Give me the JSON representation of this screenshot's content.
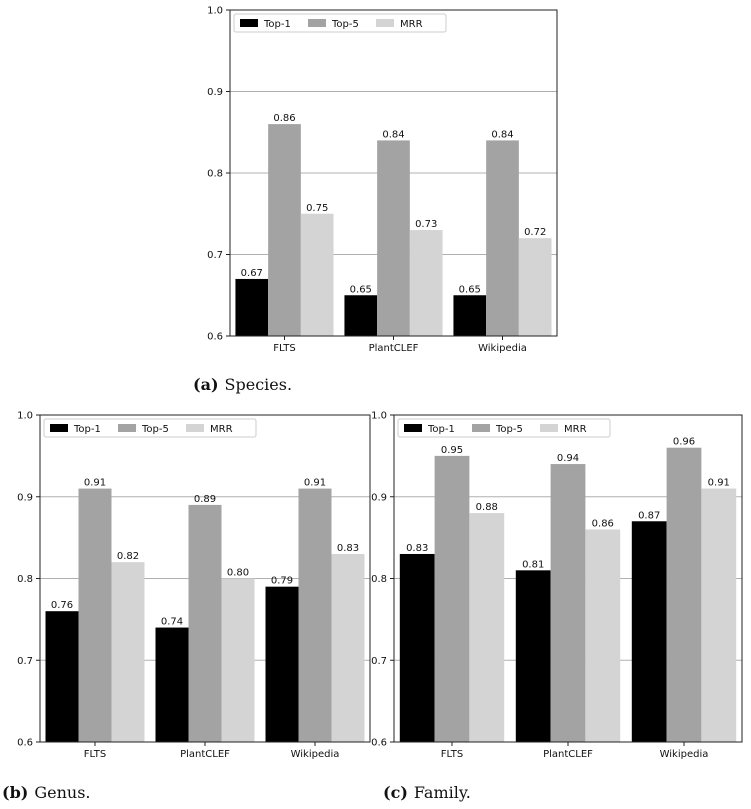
{
  "legend_labels": [
    "Top-1",
    "Top-5",
    "MRR"
  ],
  "series_colors": [
    "#000000",
    "#a3a3a3",
    "#d4d4d4"
  ],
  "captions": [
    {
      "tag": "(a)",
      "text": "Species."
    },
    {
      "tag": "(b)",
      "text": "Genus."
    },
    {
      "tag": "(c)",
      "text": "Family."
    }
  ],
  "chart_data": [
    {
      "type": "bar",
      "categories": [
        "FLTS",
        "PlantCLEF",
        "Wikipedia"
      ],
      "series": [
        {
          "name": "Top-1",
          "values": [
            0.67,
            0.65,
            0.65
          ],
          "labels": [
            "0.67",
            "0.65",
            "0.65"
          ]
        },
        {
          "name": "Top-5",
          "values": [
            0.86,
            0.84,
            0.84
          ],
          "labels": [
            "0.86",
            "0.84",
            "0.84"
          ]
        },
        {
          "name": "MRR",
          "values": [
            0.75,
            0.73,
            0.72
          ],
          "labels": [
            "0.75",
            "0.73",
            "0.72"
          ]
        }
      ],
      "ylim": [
        0.6,
        1.0
      ],
      "yticks": [
        "0.6",
        "0.7",
        "0.8",
        "0.9",
        "1.0"
      ],
      "grid": "horizontal",
      "legend": "top-left"
    },
    {
      "type": "bar",
      "categories": [
        "FLTS",
        "PlantCLEF",
        "Wikipedia"
      ],
      "series": [
        {
          "name": "Top-1",
          "values": [
            0.76,
            0.74,
            0.79
          ],
          "labels": [
            "0.76",
            "0.74",
            "0.79"
          ]
        },
        {
          "name": "Top-5",
          "values": [
            0.91,
            0.89,
            0.91
          ],
          "labels": [
            "0.91",
            "0.89",
            "0.91"
          ]
        },
        {
          "name": "MRR",
          "values": [
            0.82,
            0.8,
            0.83
          ],
          "labels": [
            "0.82",
            "0.80",
            "0.83"
          ]
        }
      ],
      "ylim": [
        0.6,
        1.0
      ],
      "yticks": [
        "0.6",
        "0.7",
        "0.8",
        "0.9",
        "1.0"
      ],
      "grid": "horizontal",
      "legend": "top-left"
    },
    {
      "type": "bar",
      "categories": [
        "FLTS",
        "PlantCLEF",
        "Wikipedia"
      ],
      "series": [
        {
          "name": "Top-1",
          "values": [
            0.83,
            0.81,
            0.87
          ],
          "labels": [
            "0.83",
            "0.81",
            "0.87"
          ]
        },
        {
          "name": "Top-5",
          "values": [
            0.95,
            0.94,
            0.96
          ],
          "labels": [
            "0.95",
            "0.94",
            "0.96"
          ]
        },
        {
          "name": "MRR",
          "values": [
            0.88,
            0.86,
            0.91
          ],
          "labels": [
            "0.88",
            "0.86",
            "0.91"
          ]
        }
      ],
      "ylim": [
        0.6,
        1.0
      ],
      "yticks": [
        "0.6",
        "0.7",
        "0.8",
        "0.9",
        "1.0"
      ],
      "grid": "horizontal",
      "legend": "top-left"
    }
  ]
}
